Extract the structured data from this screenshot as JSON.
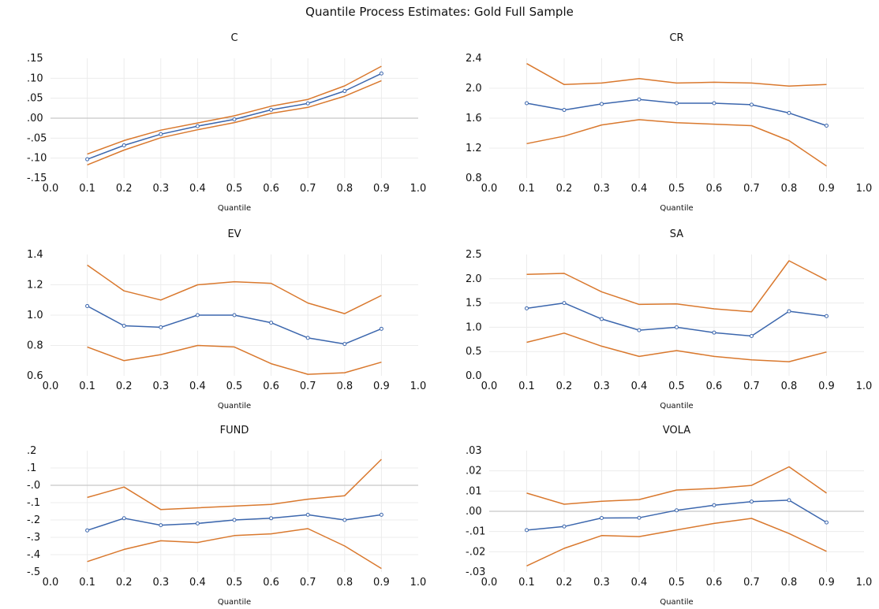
{
  "title": "Quantile Process Estimates: Gold Full Sample",
  "colors": {
    "estimate": "#3b66ad",
    "band": "#d9782d",
    "grid": "#ececec",
    "zero": "#c8c8c8"
  },
  "chart_data": [
    {
      "type": "line",
      "title": "C",
      "xlabel": "Quantile",
      "xlim": [
        0.0,
        1.0
      ],
      "ylim": [
        -0.15,
        0.15
      ],
      "x_ticks": [
        "0.0",
        "0.1",
        "0.2",
        "0.3",
        "0.4",
        "0.5",
        "0.6",
        "0.7",
        "0.8",
        "0.9",
        "1.0"
      ],
      "y_ticks": [
        {
          "v": 0.15,
          "label": ".15"
        },
        {
          "v": 0.1,
          "label": ".10"
        },
        {
          "v": 0.05,
          "label": ".05"
        },
        {
          "v": 0.0,
          "label": ".00"
        },
        {
          "v": -0.05,
          "label": "-.05"
        },
        {
          "v": -0.1,
          "label": "-.10"
        },
        {
          "v": -0.15,
          "label": "-.15"
        }
      ],
      "x": [
        0.1,
        0.2,
        0.3,
        0.4,
        0.5,
        0.6,
        0.7,
        0.8,
        0.9
      ],
      "estimate": [
        -0.103,
        -0.068,
        -0.04,
        -0.02,
        -0.003,
        0.021,
        0.037,
        0.068,
        0.112
      ],
      "upper": [
        -0.09,
        -0.056,
        -0.03,
        -0.012,
        0.006,
        0.03,
        0.047,
        0.081,
        0.13
      ],
      "lower": [
        -0.117,
        -0.08,
        -0.049,
        -0.029,
        -0.011,
        0.012,
        0.027,
        0.055,
        0.094
      ]
    },
    {
      "type": "line",
      "title": "CR",
      "xlabel": "Quantile",
      "xlim": [
        0.0,
        1.0
      ],
      "ylim": [
        0.8,
        2.4
      ],
      "x_ticks": [
        "0.0",
        "0.1",
        "0.2",
        "0.3",
        "0.4",
        "0.5",
        "0.6",
        "0.7",
        "0.8",
        "0.9",
        "1.0"
      ],
      "y_ticks": [
        {
          "v": 2.4,
          "label": "2.4"
        },
        {
          "v": 2.0,
          "label": "2.0"
        },
        {
          "v": 1.6,
          "label": "1.6"
        },
        {
          "v": 1.2,
          "label": "1.2"
        },
        {
          "v": 0.8,
          "label": "0.8"
        }
      ],
      "x": [
        0.1,
        0.2,
        0.3,
        0.4,
        0.5,
        0.6,
        0.7,
        0.8,
        0.9
      ],
      "estimate": [
        1.8,
        1.71,
        1.79,
        1.85,
        1.8,
        1.8,
        1.78,
        1.67,
        1.5
      ],
      "upper": [
        2.33,
        2.05,
        2.07,
        2.13,
        2.07,
        2.08,
        2.07,
        2.03,
        2.05
      ],
      "lower": [
        1.26,
        1.36,
        1.51,
        1.58,
        1.54,
        1.52,
        1.5,
        1.3,
        0.96
      ]
    },
    {
      "type": "line",
      "title": "EV",
      "xlabel": "Quantile",
      "xlim": [
        0.0,
        1.0
      ],
      "ylim": [
        0.6,
        1.4
      ],
      "x_ticks": [
        "0.0",
        "0.1",
        "0.2",
        "0.3",
        "0.4",
        "0.5",
        "0.6",
        "0.7",
        "0.8",
        "0.9",
        "1.0"
      ],
      "y_ticks": [
        {
          "v": 1.4,
          "label": "1.4"
        },
        {
          "v": 1.2,
          "label": "1.2"
        },
        {
          "v": 1.0,
          "label": "1.0"
        },
        {
          "v": 0.8,
          "label": "0.8"
        },
        {
          "v": 0.6,
          "label": "0.6"
        }
      ],
      "x": [
        0.1,
        0.2,
        0.3,
        0.4,
        0.5,
        0.6,
        0.7,
        0.8,
        0.9
      ],
      "estimate": [
        1.06,
        0.93,
        0.92,
        1.0,
        1.0,
        0.95,
        0.85,
        0.81,
        0.91
      ],
      "upper": [
        1.33,
        1.16,
        1.1,
        1.2,
        1.22,
        1.21,
        1.08,
        1.01,
        1.13
      ],
      "lower": [
        0.79,
        0.7,
        0.74,
        0.8,
        0.79,
        0.68,
        0.61,
        0.62,
        0.69
      ]
    },
    {
      "type": "line",
      "title": "SA",
      "xlabel": "Quantile",
      "xlim": [
        0.0,
        1.0
      ],
      "ylim": [
        0.0,
        2.5
      ],
      "x_ticks": [
        "0.0",
        "0.1",
        "0.2",
        "0.3",
        "0.4",
        "0.5",
        "0.6",
        "0.7",
        "0.8",
        "0.9",
        "1.0"
      ],
      "y_ticks": [
        {
          "v": 2.5,
          "label": "2.5"
        },
        {
          "v": 2.0,
          "label": "2.0"
        },
        {
          "v": 1.5,
          "label": "1.5"
        },
        {
          "v": 1.0,
          "label": "1.0"
        },
        {
          "v": 0.5,
          "label": "0.5"
        },
        {
          "v": 0.0,
          "label": "0.0"
        }
      ],
      "x": [
        0.1,
        0.2,
        0.3,
        0.4,
        0.5,
        0.6,
        0.7,
        0.8,
        0.9
      ],
      "estimate": [
        1.39,
        1.5,
        1.17,
        0.94,
        1.0,
        0.89,
        0.82,
        1.33,
        1.23
      ],
      "upper": [
        2.09,
        2.11,
        1.73,
        1.47,
        1.48,
        1.38,
        1.32,
        2.37,
        1.97
      ],
      "lower": [
        0.69,
        0.88,
        0.61,
        0.4,
        0.52,
        0.4,
        0.33,
        0.29,
        0.49
      ]
    },
    {
      "type": "line",
      "title": "FUND",
      "xlabel": "Quantile",
      "xlim": [
        0.0,
        1.0
      ],
      "ylim": [
        -0.5,
        0.2
      ],
      "x_ticks": [
        "0.0",
        "0.1",
        "0.2",
        "0.3",
        "0.4",
        "0.5",
        "0.6",
        "0.7",
        "0.8",
        "0.9",
        "1.0"
      ],
      "y_ticks": [
        {
          "v": 0.2,
          "label": ".2"
        },
        {
          "v": 0.1,
          "label": ".1"
        },
        {
          "v": 0.0,
          "label": "-.0"
        },
        {
          "v": -0.1,
          "label": "-.1"
        },
        {
          "v": -0.2,
          "label": "-.2"
        },
        {
          "v": -0.3,
          "label": "-.3"
        },
        {
          "v": -0.4,
          "label": "-.4"
        },
        {
          "v": -0.5,
          "label": "-.5"
        }
      ],
      "x": [
        0.1,
        0.2,
        0.3,
        0.4,
        0.5,
        0.6,
        0.7,
        0.8,
        0.9
      ],
      "estimate": [
        -0.26,
        -0.19,
        -0.23,
        -0.22,
        -0.2,
        -0.19,
        -0.17,
        -0.2,
        -0.17
      ],
      "upper": [
        -0.07,
        -0.01,
        -0.14,
        -0.13,
        -0.12,
        -0.11,
        -0.08,
        -0.06,
        0.15
      ],
      "lower": [
        -0.44,
        -0.37,
        -0.32,
        -0.33,
        -0.29,
        -0.28,
        -0.25,
        -0.35,
        -0.48
      ]
    },
    {
      "type": "line",
      "title": "VOLA",
      "xlabel": "Quantile",
      "xlim": [
        0.0,
        1.0
      ],
      "ylim": [
        -0.03,
        0.03
      ],
      "x_ticks": [
        "0.0",
        "0.1",
        "0.2",
        "0.3",
        "0.4",
        "0.5",
        "0.6",
        "0.7",
        "0.8",
        "0.9",
        "1.0"
      ],
      "y_ticks": [
        {
          "v": 0.03,
          "label": ".03"
        },
        {
          "v": 0.02,
          "label": ".02"
        },
        {
          "v": 0.01,
          "label": ".01"
        },
        {
          "v": 0.0,
          "label": ".00"
        },
        {
          "v": -0.01,
          "label": "-.01"
        },
        {
          "v": -0.02,
          "label": "-.02"
        },
        {
          "v": -0.03,
          "label": "-.03"
        }
      ],
      "x": [
        0.1,
        0.2,
        0.3,
        0.4,
        0.5,
        0.6,
        0.7,
        0.8,
        0.9
      ],
      "estimate": [
        -0.0093,
        -0.0075,
        -0.0033,
        -0.0032,
        0.0005,
        0.003,
        0.0048,
        0.0055,
        -0.0055
      ],
      "upper": [
        0.009,
        0.0035,
        0.005,
        0.0058,
        0.0105,
        0.0113,
        0.0128,
        0.022,
        0.009
      ],
      "lower": [
        -0.027,
        -0.0183,
        -0.012,
        -0.0125,
        -0.0092,
        -0.006,
        -0.0035,
        -0.011,
        -0.0198
      ]
    }
  ]
}
